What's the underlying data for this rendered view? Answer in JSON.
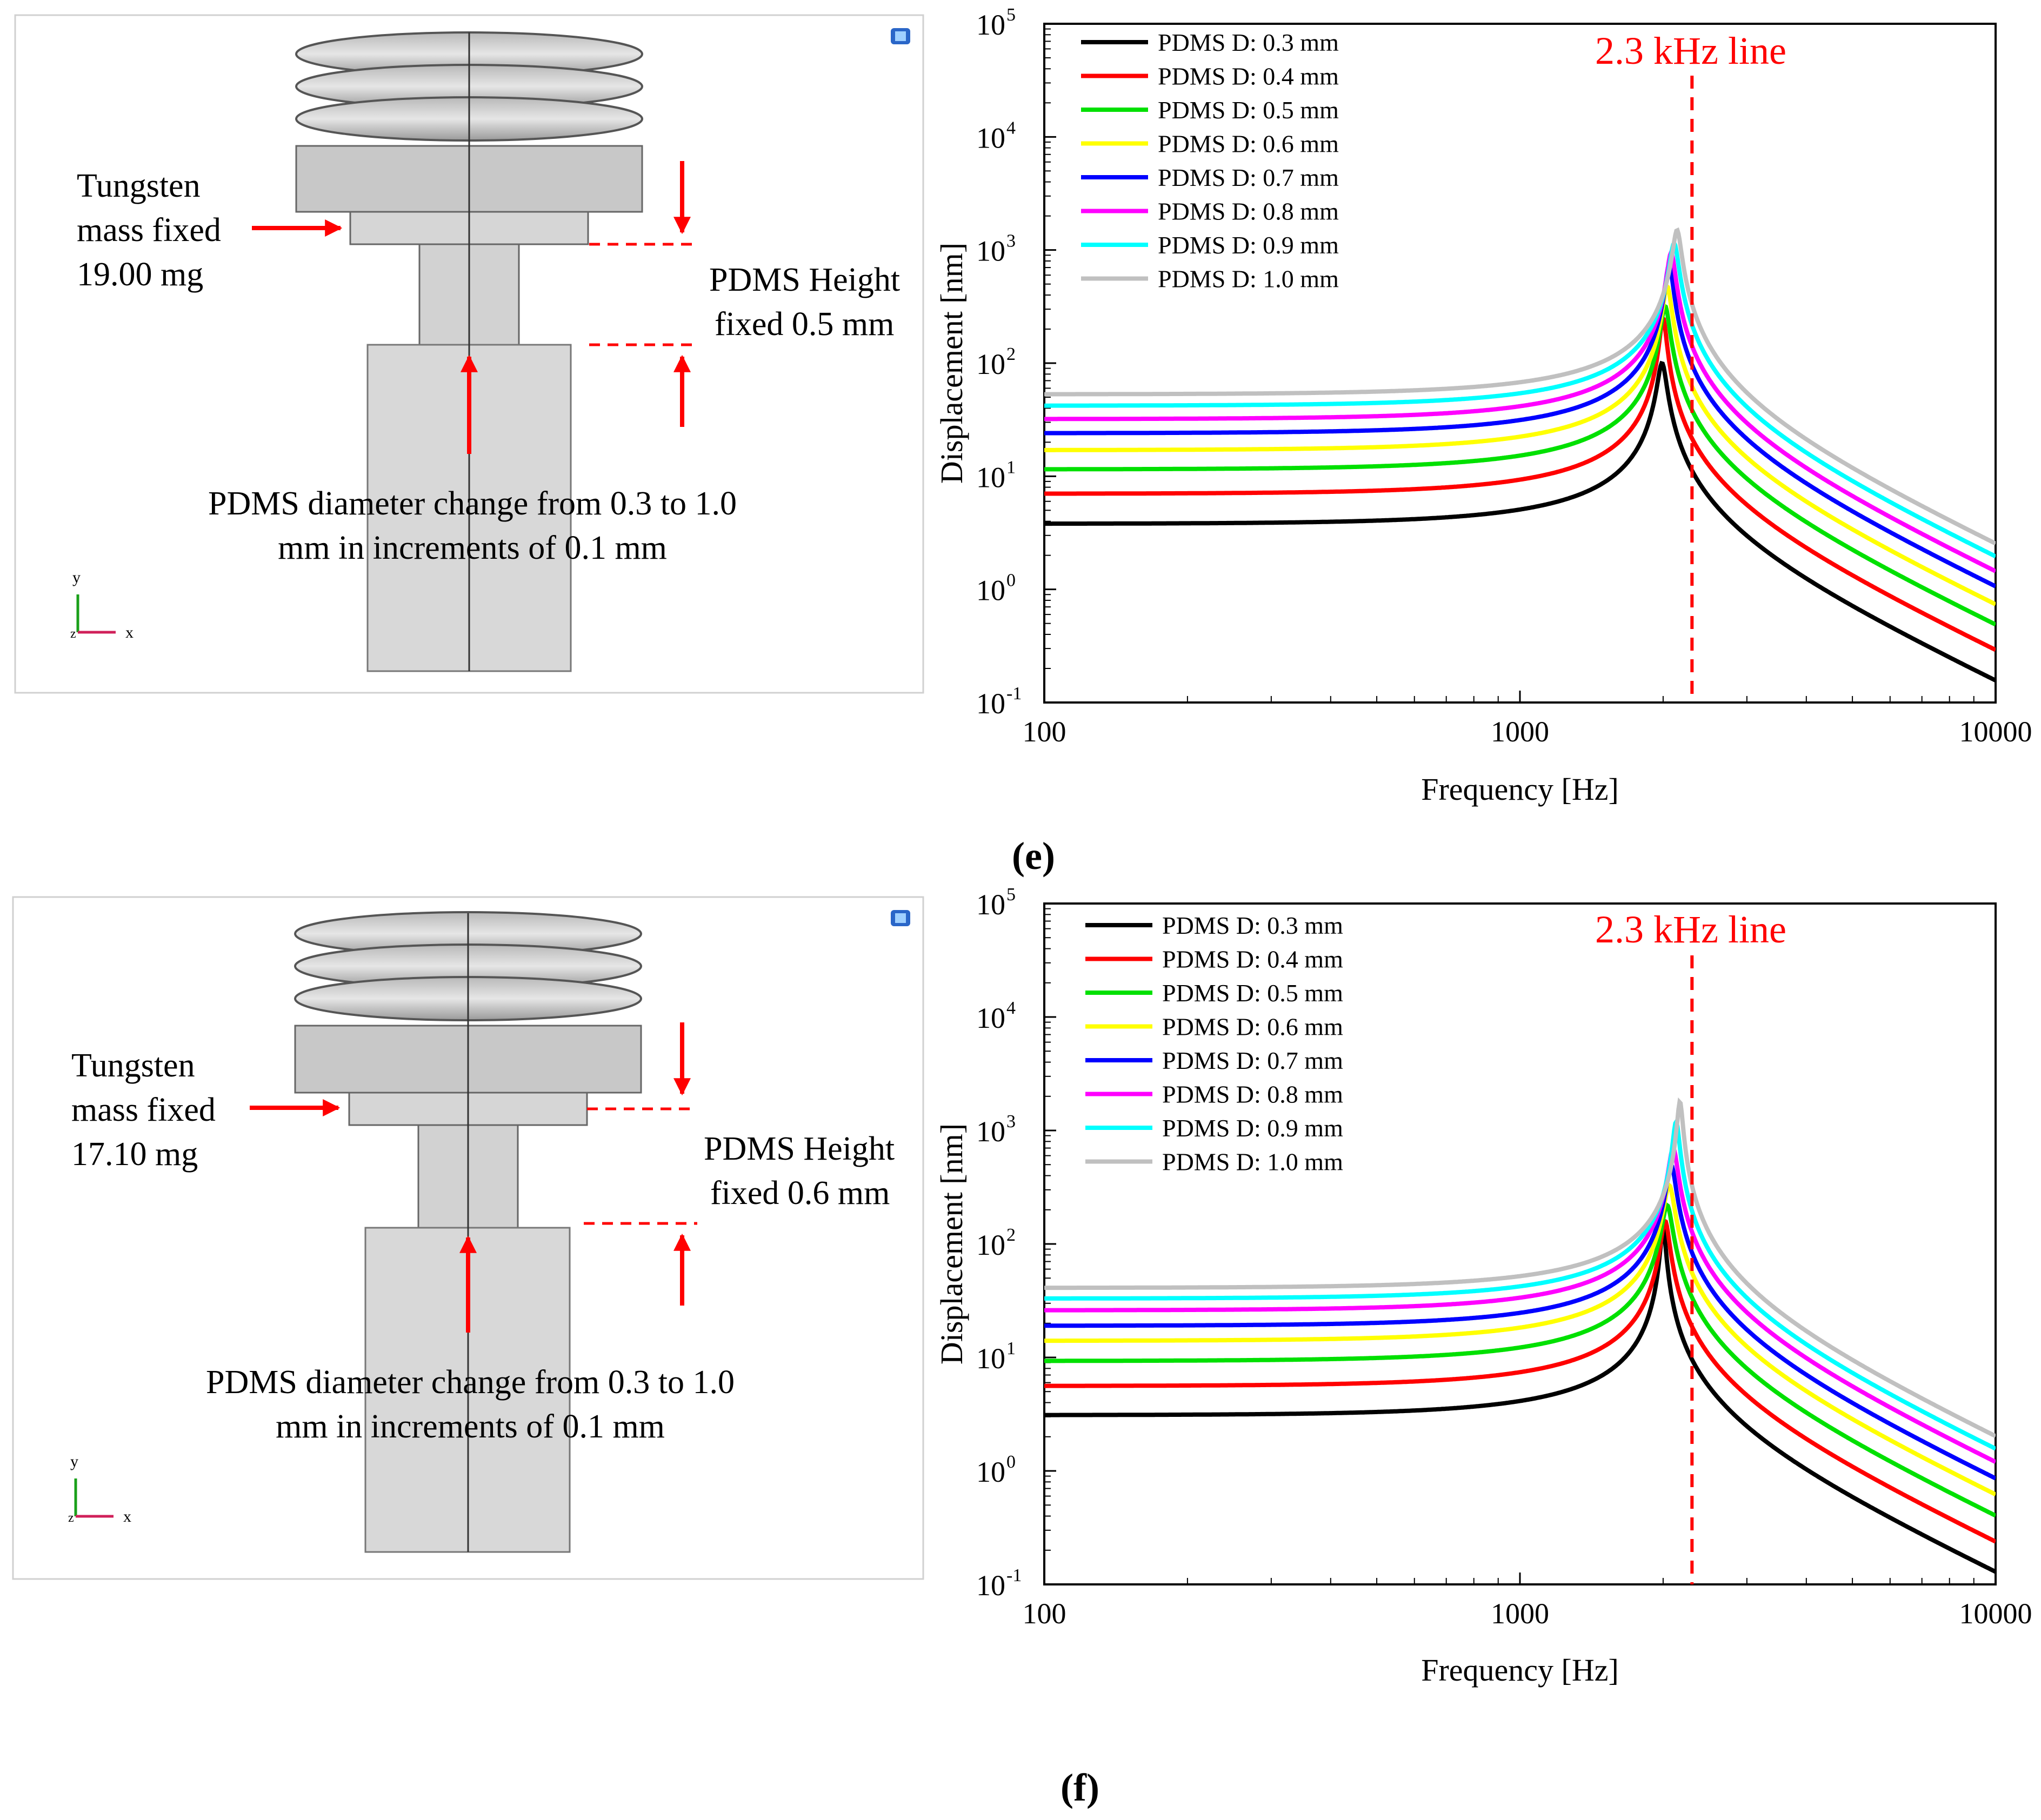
{
  "colors": {
    "series": [
      "#000000",
      "#ff0000",
      "#00e000",
      "#ffff00",
      "#0000ff",
      "#ff00ff",
      "#00ffff",
      "#c0c0c0"
    ],
    "annotation": "#ff0000"
  },
  "panels": [
    {
      "label": "(e)",
      "model": {
        "mass_label": [
          "Tungsten",
          "mass fixed",
          "19.00 mg"
        ],
        "height_label": [
          "PDMS Height",
          "fixed 0.5 mm"
        ],
        "diameter_label": [
          "PDMS diameter change from 0.3 to 1.0",
          "mm in increments of 0.1 mm"
        ],
        "axis_y": "y",
        "axis_x": "x",
        "axis_z": "z"
      }
    },
    {
      "label": "(f)",
      "model": {
        "mass_label": [
          "Tungsten",
          "mass fixed",
          "17.10 mg"
        ],
        "height_label": [
          "PDMS Height",
          "fixed 0.6 mm"
        ],
        "diameter_label": [
          "PDMS diameter change from 0.3 to 1.0",
          "mm in increments of 0.1 mm"
        ],
        "axis_y": "y",
        "axis_x": "x",
        "axis_z": "z"
      }
    }
  ],
  "chart_data": [
    {
      "type": "line",
      "panel": "(e)",
      "xscale": "log",
      "yscale": "log",
      "xlabel": "Frequency [Hz]",
      "ylabel": "Displacement [nm]",
      "xlim": [
        100,
        10000
      ],
      "ylim": [
        0.1,
        100000
      ],
      "xticks": [
        100,
        1000,
        10000
      ],
      "xtick_labels": [
        "100",
        "1000",
        "10000"
      ],
      "ytick_exponents": [
        "-1",
        "0",
        "1",
        "2",
        "3",
        "4",
        "5"
      ],
      "legend_position": "top-left",
      "vline": {
        "x": 2300,
        "label": "2.3 kHz line"
      },
      "curve_model": "single-degree-of-freedom resonance: x(f) = d0 / sqrt((1-(f/fr)^2)^2 + (f/(Q*fr))^2)",
      "series": [
        {
          "name": "PDMS D: 0.3 mm",
          "d0": 3.8,
          "fr": 1990,
          "peak": 100
        },
        {
          "name": "PDMS D: 0.4 mm",
          "d0": 7.0,
          "fr": 2000,
          "peak": 250
        },
        {
          "name": "PDMS D: 0.5 mm",
          "d0": 11.5,
          "fr": 2020,
          "peak": 320
        },
        {
          "name": "PDMS D: 0.6 mm",
          "d0": 17,
          "fr": 2040,
          "peak": 480
        },
        {
          "name": "PDMS D: 0.7 mm",
          "d0": 24,
          "fr": 2060,
          "peak": 750
        },
        {
          "name": "PDMS D: 0.8 mm",
          "d0": 32,
          "fr": 2080,
          "peak": 950
        },
        {
          "name": "PDMS D: 0.9 mm",
          "d0": 42,
          "fr": 2110,
          "peak": 1150
        },
        {
          "name": "PDMS D: 1.0 mm",
          "d0": 53,
          "fr": 2140,
          "peak": 1500
        }
      ]
    },
    {
      "type": "line",
      "panel": "(f)",
      "xscale": "log",
      "yscale": "log",
      "xlabel": "Frequency [Hz]",
      "ylabel": "Displacement [nm]",
      "xlim": [
        100,
        10000
      ],
      "ylim": [
        0.1,
        100000
      ],
      "xticks": [
        100,
        1000,
        10000
      ],
      "xtick_labels": [
        "100",
        "1000",
        "10000"
      ],
      "ytick_exponents": [
        "-1",
        "0",
        "1",
        "2",
        "3",
        "4",
        "5"
      ],
      "legend_position": "top-left",
      "vline": {
        "x": 2300,
        "label": "2.3 kHz line"
      },
      "curve_model": "single-degree-of-freedom resonance: x(f) = d0 / sqrt((1-(f/fr)^2)^2 + (f/(Q*fr))^2)",
      "series": [
        {
          "name": "PDMS D: 0.3 mm",
          "d0": 3.1,
          "fr": 2000,
          "peak": 140
        },
        {
          "name": "PDMS D: 0.4 mm",
          "d0": 5.6,
          "fr": 2020,
          "peak": 160
        },
        {
          "name": "PDMS D: 0.5 mm",
          "d0": 9.3,
          "fr": 2040,
          "peak": 220
        },
        {
          "name": "PDMS D: 0.6 mm",
          "d0": 14,
          "fr": 2060,
          "peak": 330
        },
        {
          "name": "PDMS D: 0.7 mm",
          "d0": 19,
          "fr": 2080,
          "peak": 500
        },
        {
          "name": "PDMS D: 0.8 mm",
          "d0": 26,
          "fr": 2100,
          "peak": 700
        },
        {
          "name": "PDMS D: 0.9 mm",
          "d0": 33,
          "fr": 2130,
          "peak": 1200
        },
        {
          "name": "PDMS D: 1.0 mm",
          "d0": 41,
          "fr": 2170,
          "peak": 1800
        }
      ]
    }
  ]
}
